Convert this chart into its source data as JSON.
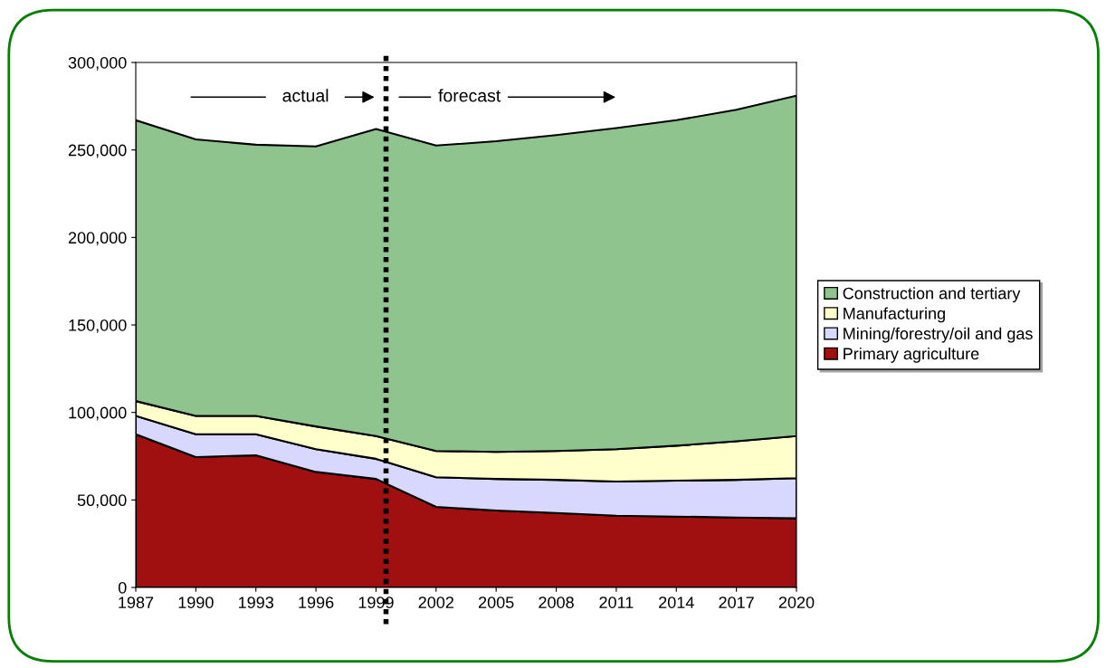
{
  "chart_data": {
    "type": "area",
    "stacked": true,
    "x": [
      1987,
      1990,
      1993,
      1996,
      1999,
      2002,
      2005,
      2008,
      2011,
      2014,
      2017,
      2020
    ],
    "series": [
      {
        "name": "Primary agriculture",
        "color": "#a01010",
        "values": [
          87500,
          74500,
          75500,
          66000,
          62000,
          46000,
          44000,
          42500,
          41000,
          40500,
          40000,
          39500
        ]
      },
      {
        "name": "Mining/forestry/oil and gas",
        "color": "#d8d8ff",
        "values": [
          10500,
          13000,
          12000,
          13000,
          11500,
          17000,
          18000,
          19000,
          19500,
          20500,
          21500,
          23000
        ]
      },
      {
        "name": "Manufacturing",
        "color": "#ffffcc",
        "values": [
          8500,
          10500,
          10500,
          13000,
          13000,
          15000,
          15500,
          16500,
          18500,
          20000,
          22000,
          24000
        ]
      },
      {
        "name": "Construction and tertiary",
        "color": "#8fc48f",
        "values": [
          160500,
          158000,
          155000,
          160000,
          175500,
          174500,
          177500,
          180500,
          183500,
          186000,
          189500,
          194500
        ]
      }
    ],
    "xlim": [
      1987,
      2020
    ],
    "xticks": [
      1987,
      1990,
      1993,
      1996,
      1999,
      2002,
      2005,
      2008,
      2011,
      2014,
      2017,
      2020
    ],
    "ylim": [
      0,
      300000
    ],
    "yticks": [
      0,
      {
        "value": 50000,
        "label": "50,000"
      },
      {
        "value": 100000,
        "label": "100,000"
      },
      {
        "value": 150000,
        "label": "150,000"
      },
      {
        "value": 200000,
        "label": "200,000"
      },
      {
        "value": 250000,
        "label": "250,000"
      },
      {
        "value": 300000,
        "label": "300,000"
      }
    ],
    "ref_lines": [
      {
        "axis": "x",
        "value": 1999.5,
        "color": "#000000",
        "line_style": "dotted"
      }
    ],
    "annotations": [
      "actual",
      "forecast"
    ],
    "legend": "right",
    "grid": false
  }
}
